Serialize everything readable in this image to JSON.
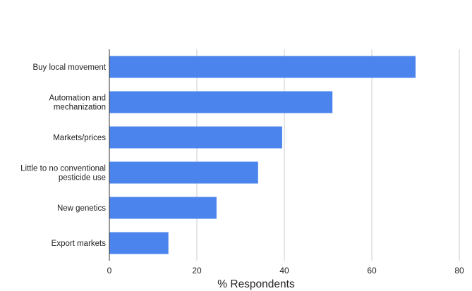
{
  "chart_data": {
    "type": "bar",
    "orientation": "horizontal",
    "categories": [
      [
        "Buy local movement"
      ],
      [
        "Automation and",
        "mechanization"
      ],
      [
        "Markets/prices"
      ],
      [
        "Little to no conventional",
        "pesticide use"
      ],
      [
        "New genetics"
      ],
      [
        "Export markets"
      ]
    ],
    "values": [
      70,
      51,
      39.5,
      34,
      24.5,
      13.5
    ],
    "xlabel": "% Respondents",
    "ylabel": "",
    "xlim": [
      0,
      80
    ],
    "xticks": [
      0,
      20,
      40,
      60,
      80
    ],
    "grid": "vertical",
    "bar_color": "#4a84ec"
  }
}
